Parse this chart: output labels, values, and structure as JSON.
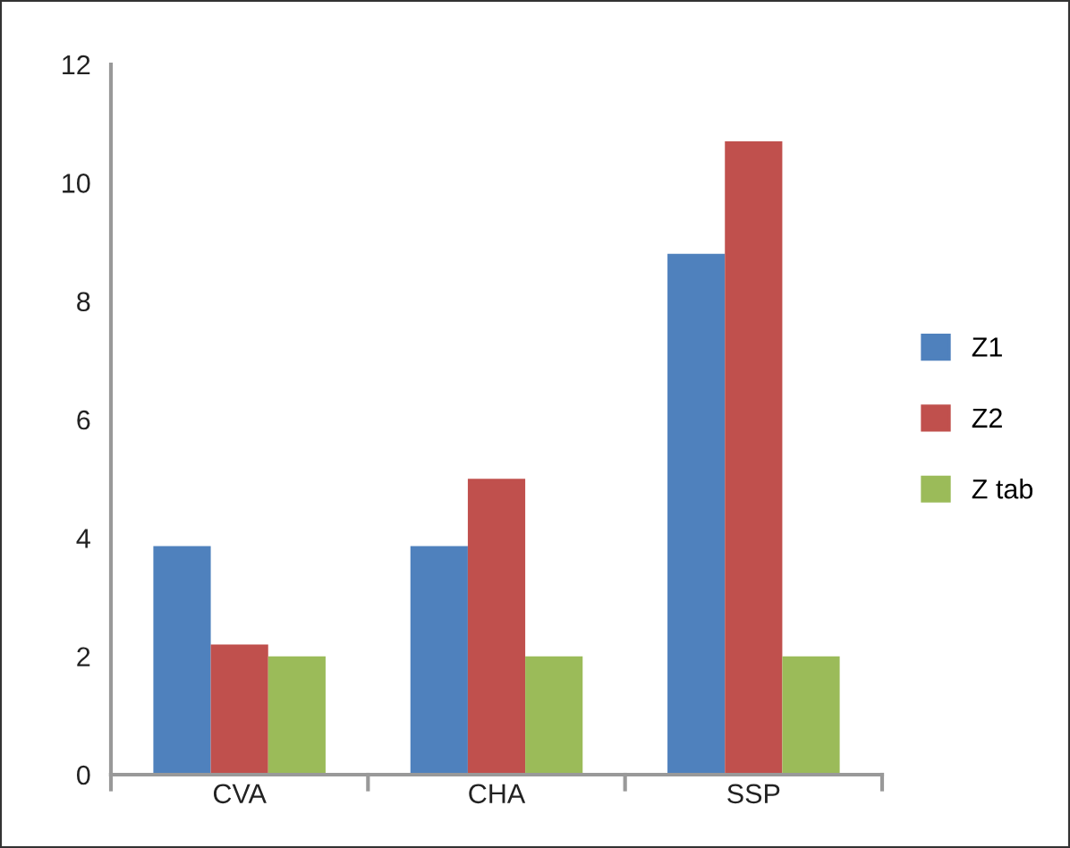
{
  "chart_data": {
    "type": "bar",
    "categories": [
      "CVA",
      "CHA",
      "SSP"
    ],
    "series": [
      {
        "name": "Z1",
        "color": "#4f81bd",
        "values": [
          3.86,
          3.86,
          8.8
        ]
      },
      {
        "name": "Z2",
        "color": "#c0504d",
        "values": [
          2.2,
          5.0,
          10.7
        ]
      },
      {
        "name": "Z tab",
        "color": "#9bbb59",
        "values": [
          2,
          2,
          2
        ]
      }
    ],
    "ylim": [
      0,
      12
    ],
    "yticks": [
      0,
      2,
      4,
      6,
      8,
      10,
      12
    ],
    "grid": false,
    "legend": "right"
  }
}
